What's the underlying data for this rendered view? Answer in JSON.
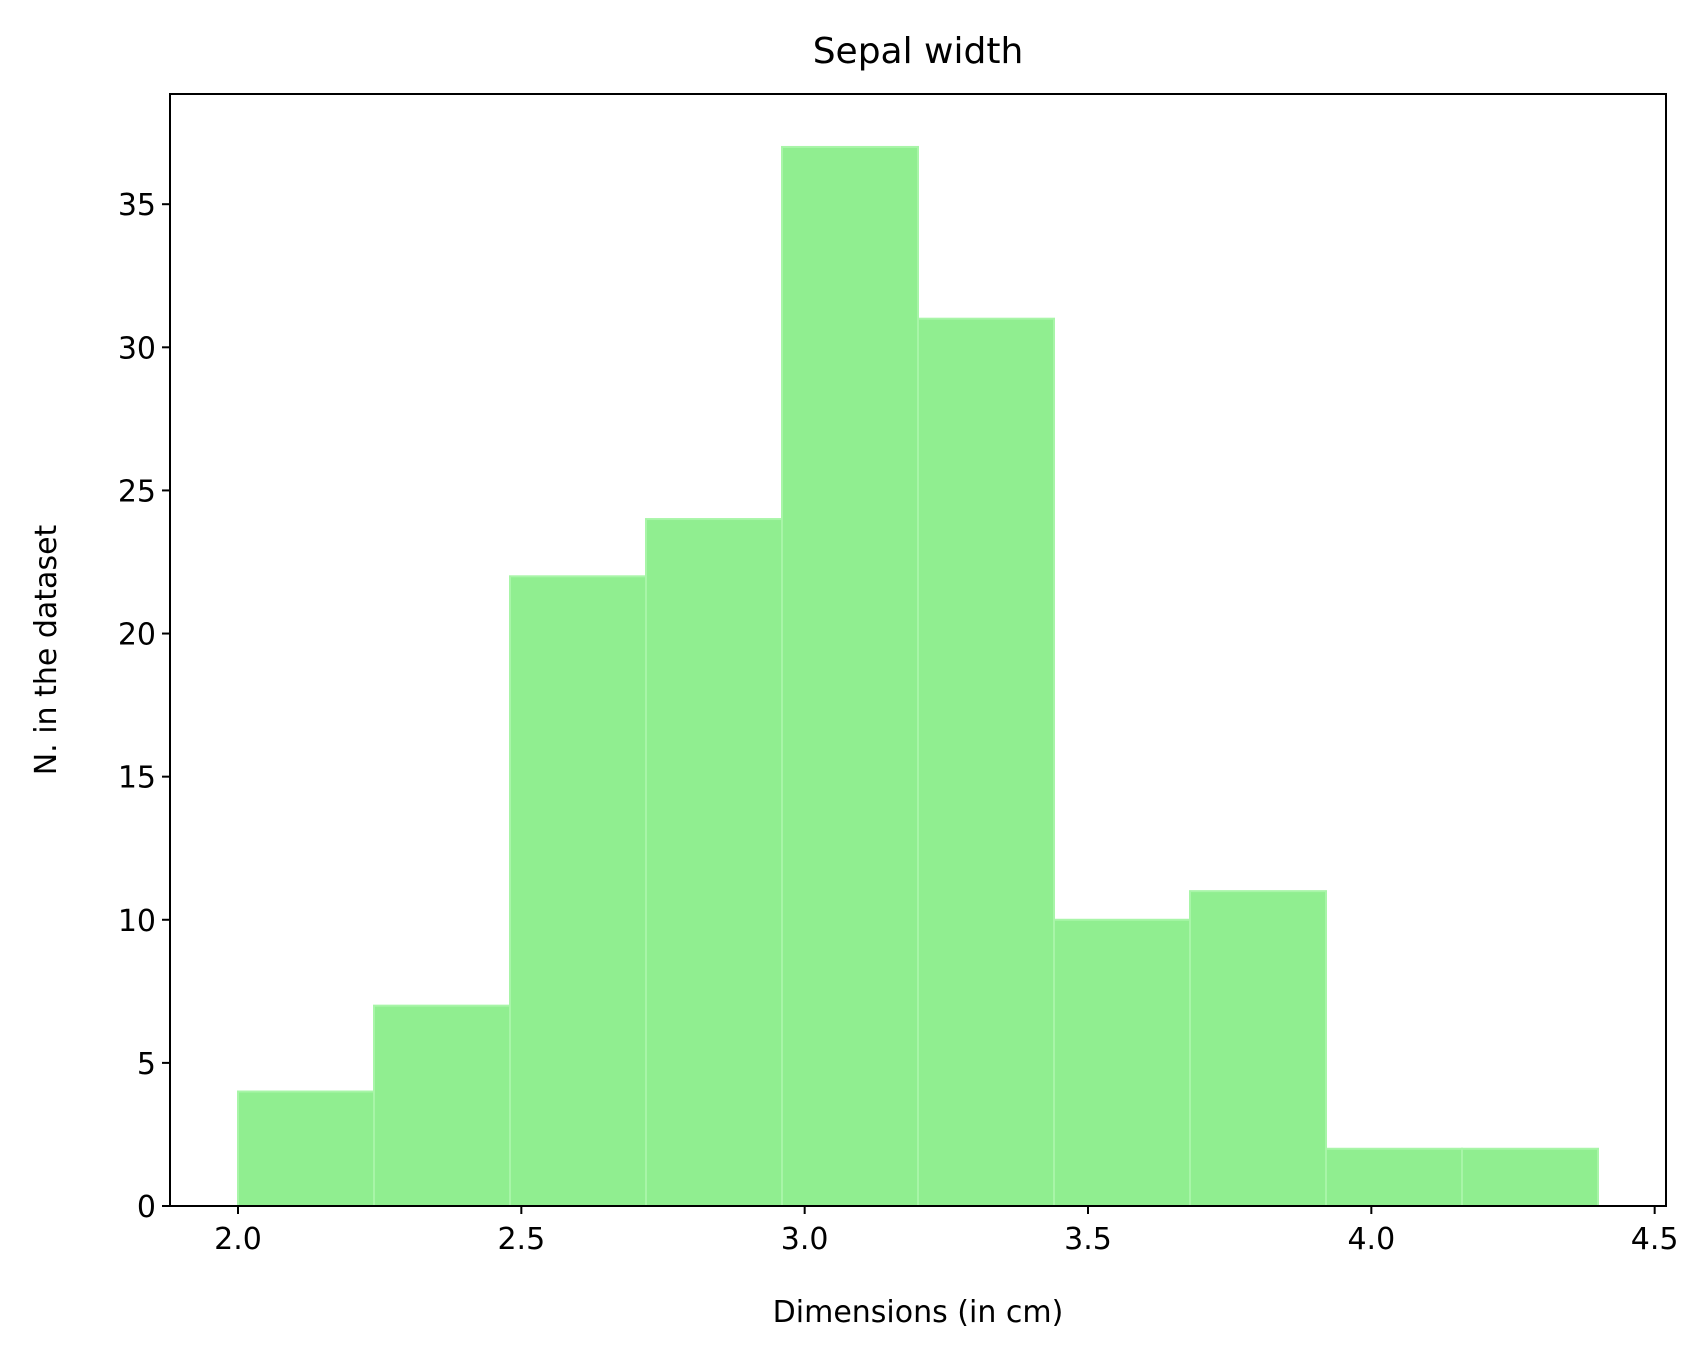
{
  "chart_data": {
    "type": "bar",
    "title": "Sepal width",
    "xlabel": "Dimensions (in cm)",
    "ylabel": "N. in the dataset",
    "bins": [
      {
        "x_start": 2.0,
        "x_end": 2.24,
        "count": 4
      },
      {
        "x_start": 2.24,
        "x_end": 2.48,
        "count": 7
      },
      {
        "x_start": 2.48,
        "x_end": 2.72,
        "count": 22
      },
      {
        "x_start": 2.72,
        "x_end": 2.96,
        "count": 24
      },
      {
        "x_start": 2.96,
        "x_end": 3.2,
        "count": 37
      },
      {
        "x_start": 3.2,
        "x_end": 3.44,
        "count": 31
      },
      {
        "x_start": 3.44,
        "x_end": 3.68,
        "count": 10
      },
      {
        "x_start": 3.68,
        "x_end": 3.92,
        "count": 11
      },
      {
        "x_start": 3.92,
        "x_end": 4.16,
        "count": 2
      },
      {
        "x_start": 4.16,
        "x_end": 4.4,
        "count": 2
      }
    ],
    "xlim": [
      1.88,
      4.52
    ],
    "ylim": [
      0,
      38.85
    ],
    "xticks": [
      "2.0",
      "2.5",
      "3.0",
      "3.5",
      "4.0",
      "4.5"
    ],
    "yticks": [
      "0",
      "5",
      "10",
      "15",
      "20",
      "25",
      "30",
      "35"
    ],
    "grid": false,
    "bar_color": "#90EE90",
    "edge_color": "#A8F5A8"
  }
}
